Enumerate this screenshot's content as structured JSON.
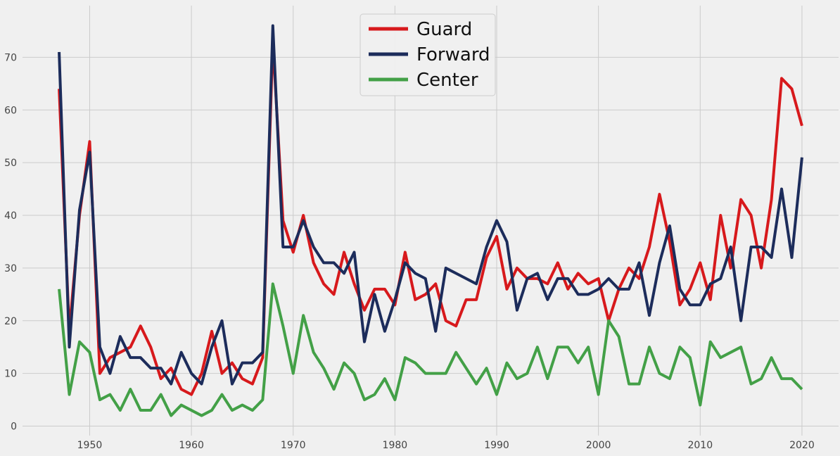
{
  "chart_data": {
    "type": "line",
    "title": "",
    "xlabel": "",
    "ylabel": "",
    "xlim": [
      1943.4,
      2023.6
    ],
    "ylim": [
      -1.8,
      79.8
    ],
    "xticks": [
      1950,
      1960,
      1970,
      1980,
      1990,
      2000,
      2010,
      2020
    ],
    "yticks": [
      0,
      10,
      20,
      30,
      40,
      50,
      60,
      70
    ],
    "grid": true,
    "legend_position": "top-center",
    "x": [
      1947,
      1948,
      1949,
      1950,
      1951,
      1952,
      1953,
      1954,
      1955,
      1956,
      1957,
      1958,
      1959,
      1960,
      1961,
      1962,
      1963,
      1964,
      1965,
      1966,
      1967,
      1968,
      1969,
      1970,
      1971,
      1972,
      1973,
      1974,
      1975,
      1976,
      1977,
      1978,
      1979,
      1980,
      1981,
      1982,
      1983,
      1984,
      1985,
      1986,
      1987,
      1988,
      1989,
      1990,
      1991,
      1992,
      1993,
      1994,
      1995,
      1996,
      1997,
      1998,
      1999,
      2000,
      2001,
      2002,
      2003,
      2004,
      2005,
      2006,
      2007,
      2008,
      2009,
      2010,
      2011,
      2012,
      2013,
      2014,
      2015,
      2016,
      2017,
      2018,
      2019,
      2020
    ],
    "series": [
      {
        "name": "Guard",
        "color": "#d7191c",
        "values": [
          64,
          18,
          40,
          54,
          10,
          13,
          14,
          15,
          19,
          15,
          9,
          11,
          7,
          6,
          10,
          18,
          10,
          12,
          9,
          8,
          13,
          73,
          39,
          33,
          40,
          31,
          27,
          25,
          33,
          27,
          22,
          26,
          26,
          23,
          33,
          24,
          25,
          27,
          20,
          19,
          24,
          24,
          32,
          36,
          26,
          30,
          28,
          28,
          27,
          31,
          26,
          29,
          27,
          28,
          20,
          26,
          30,
          28,
          34,
          44,
          35,
          23,
          26,
          31,
          24,
          40,
          30,
          43,
          40,
          30,
          43,
          66,
          64,
          57
        ]
      },
      {
        "name": "Forward",
        "color": "#1c2c5b",
        "values": [
          71,
          15,
          41,
          52,
          15,
          10,
          17,
          13,
          13,
          11,
          11,
          8,
          14,
          10,
          8,
          15,
          20,
          8,
          12,
          12,
          14,
          76,
          34,
          34,
          39,
          34,
          31,
          31,
          29,
          33,
          16,
          25,
          18,
          24,
          31,
          29,
          28,
          18,
          30,
          29,
          28,
          27,
          34,
          39,
          35,
          22,
          28,
          29,
          24,
          28,
          28,
          25,
          25,
          26,
          28,
          26,
          26,
          31,
          21,
          31,
          38,
          26,
          23,
          23,
          27,
          28,
          34,
          20,
          34,
          34,
          32,
          45,
          32,
          51
        ]
      },
      {
        "name": "Center",
        "color": "#43a047",
        "values": [
          26,
          6,
          16,
          14,
          5,
          6,
          3,
          7,
          3,
          3,
          6,
          2,
          4,
          3,
          2,
          3,
          6,
          3,
          4,
          3,
          5,
          27,
          19,
          10,
          21,
          14,
          11,
          7,
          12,
          10,
          5,
          6,
          9,
          5,
          13,
          12,
          10,
          10,
          10,
          14,
          11,
          8,
          11,
          6,
          12,
          9,
          10,
          15,
          9,
          15,
          15,
          12,
          15,
          6,
          20,
          17,
          8,
          8,
          15,
          10,
          9,
          15,
          13,
          4,
          16,
          13,
          14,
          15,
          8,
          9,
          13,
          9,
          9,
          7
        ]
      }
    ]
  }
}
